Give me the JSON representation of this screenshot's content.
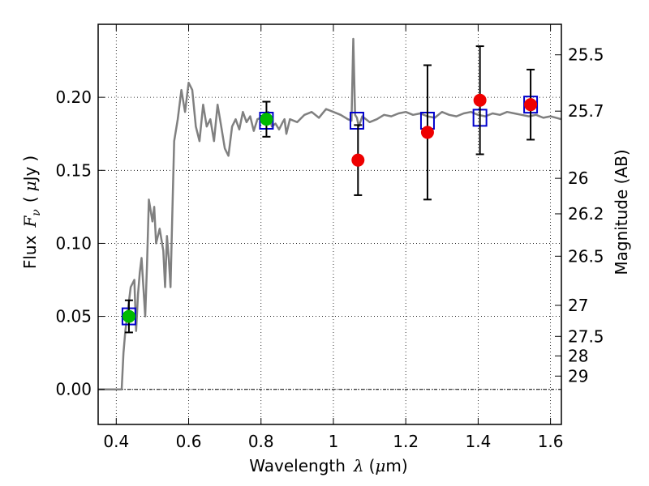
{
  "chart_data": {
    "type": "scatter",
    "title": "",
    "xlabel": {
      "prefix": "Wavelength",
      "symbol": "λ",
      "unit_open": "(",
      "unit_mu": "μ",
      "unit_m": "m",
      "unit_close": ")"
    },
    "ylabel": {
      "prefix": "Flux",
      "symbol": "F",
      "subscript": "ν",
      "unit_open": "(",
      "unit_mu": "μ",
      "unit_jy": "Jy",
      "unit_close": ")"
    },
    "y2label": "Magnitude (AB)",
    "xlim": [
      0.35,
      1.63
    ],
    "ylim": [
      -0.024,
      0.25
    ],
    "grid": true,
    "x_ticks": [
      0.4,
      0.6,
      0.8,
      1.0,
      1.2,
      1.4,
      1.6
    ],
    "x_tick_labels": [
      "0.4",
      "0.6",
      "0.8",
      "1",
      "1.2",
      "1.4",
      "1.6"
    ],
    "y_ticks": [
      0.0,
      0.05,
      0.1,
      0.15,
      0.2
    ],
    "y_tick_labels": [
      "0.00",
      "0.05",
      "0.10",
      "0.15",
      "0.20"
    ],
    "magnitude_ticks": [
      {
        "mag": 25.5,
        "label": "25.5"
      },
      {
        "mag": 25.7,
        "label": "25.7"
      },
      {
        "mag": 26.0,
        "label": "26"
      },
      {
        "mag": 26.2,
        "label": "26.2"
      },
      {
        "mag": 26.5,
        "label": "26.5"
      },
      {
        "mag": 27.0,
        "label": "27"
      },
      {
        "mag": 27.5,
        "label": "27.5"
      },
      {
        "mag": 28.0,
        "label": "28"
      },
      {
        "mag": 29.0,
        "label": "29"
      }
    ],
    "series": [
      {
        "kind": "line",
        "color": "#808080",
        "x": [
          0.35,
          0.4,
          0.41,
          0.415,
          0.42,
          0.425,
          0.43,
          0.44,
          0.45,
          0.455,
          0.46,
          0.465,
          0.47,
          0.48,
          0.485,
          0.49,
          0.5,
          0.505,
          0.51,
          0.52,
          0.53,
          0.535,
          0.54,
          0.545,
          0.55,
          0.555,
          0.56,
          0.57,
          0.58,
          0.59,
          0.6,
          0.61,
          0.62,
          0.63,
          0.64,
          0.65,
          0.66,
          0.67,
          0.68,
          0.69,
          0.7,
          0.71,
          0.72,
          0.73,
          0.74,
          0.75,
          0.76,
          0.77,
          0.78,
          0.79,
          0.8,
          0.81,
          0.82,
          0.83,
          0.84,
          0.85,
          0.86,
          0.865,
          0.87,
          0.88,
          0.9,
          0.92,
          0.94,
          0.96,
          0.98,
          1.0,
          1.02,
          1.04,
          1.05,
          1.055,
          1.06,
          1.065,
          1.07,
          1.08,
          1.1,
          1.12,
          1.14,
          1.16,
          1.18,
          1.2,
          1.22,
          1.24,
          1.26,
          1.28,
          1.3,
          1.32,
          1.34,
          1.36,
          1.38,
          1.4,
          1.42,
          1.44,
          1.46,
          1.48,
          1.5,
          1.52,
          1.54,
          1.56,
          1.58,
          1.6,
          1.63
        ],
        "y": [
          0.0,
          0.0,
          0.0,
          0.0,
          0.025,
          0.04,
          0.05,
          0.07,
          0.075,
          0.04,
          0.065,
          0.08,
          0.09,
          0.05,
          0.085,
          0.13,
          0.115,
          0.125,
          0.1,
          0.11,
          0.095,
          0.07,
          0.105,
          0.09,
          0.07,
          0.12,
          0.17,
          0.185,
          0.205,
          0.19,
          0.21,
          0.205,
          0.18,
          0.17,
          0.195,
          0.18,
          0.185,
          0.17,
          0.195,
          0.18,
          0.165,
          0.16,
          0.18,
          0.185,
          0.178,
          0.19,
          0.183,
          0.187,
          0.177,
          0.185,
          0.186,
          0.183,
          0.19,
          0.18,
          0.182,
          0.178,
          0.183,
          0.185,
          0.175,
          0.185,
          0.183,
          0.188,
          0.19,
          0.186,
          0.192,
          0.19,
          0.188,
          0.185,
          0.184,
          0.24,
          0.188,
          0.186,
          0.18,
          0.187,
          0.183,
          0.185,
          0.188,
          0.187,
          0.189,
          0.19,
          0.188,
          0.189,
          0.187,
          0.186,
          0.19,
          0.188,
          0.187,
          0.189,
          0.19,
          0.188,
          0.187,
          0.189,
          0.188,
          0.19,
          0.189,
          0.188,
          0.187,
          0.188,
          0.186,
          0.187,
          0.185
        ]
      },
      {
        "kind": "model-boxes",
        "color": "#0000cc",
        "x": [
          0.435,
          0.815,
          1.065,
          1.26,
          1.405,
          1.545
        ],
        "y": [
          0.05,
          0.184,
          0.184,
          0.184,
          0.186,
          0.195
        ]
      },
      {
        "kind": "detections",
        "color": "#00bb00",
        "x": [
          0.435,
          0.815
        ],
        "y": [
          0.05,
          0.185
        ],
        "yerr": [
          0.011,
          0.012
        ]
      },
      {
        "kind": "detections",
        "color": "#ee0000",
        "x": [
          1.068,
          1.26,
          1.405,
          1.545
        ],
        "y": [
          0.157,
          0.176,
          0.198,
          0.195
        ],
        "yerr": [
          0.024,
          0.046,
          0.037,
          0.024
        ]
      }
    ]
  }
}
